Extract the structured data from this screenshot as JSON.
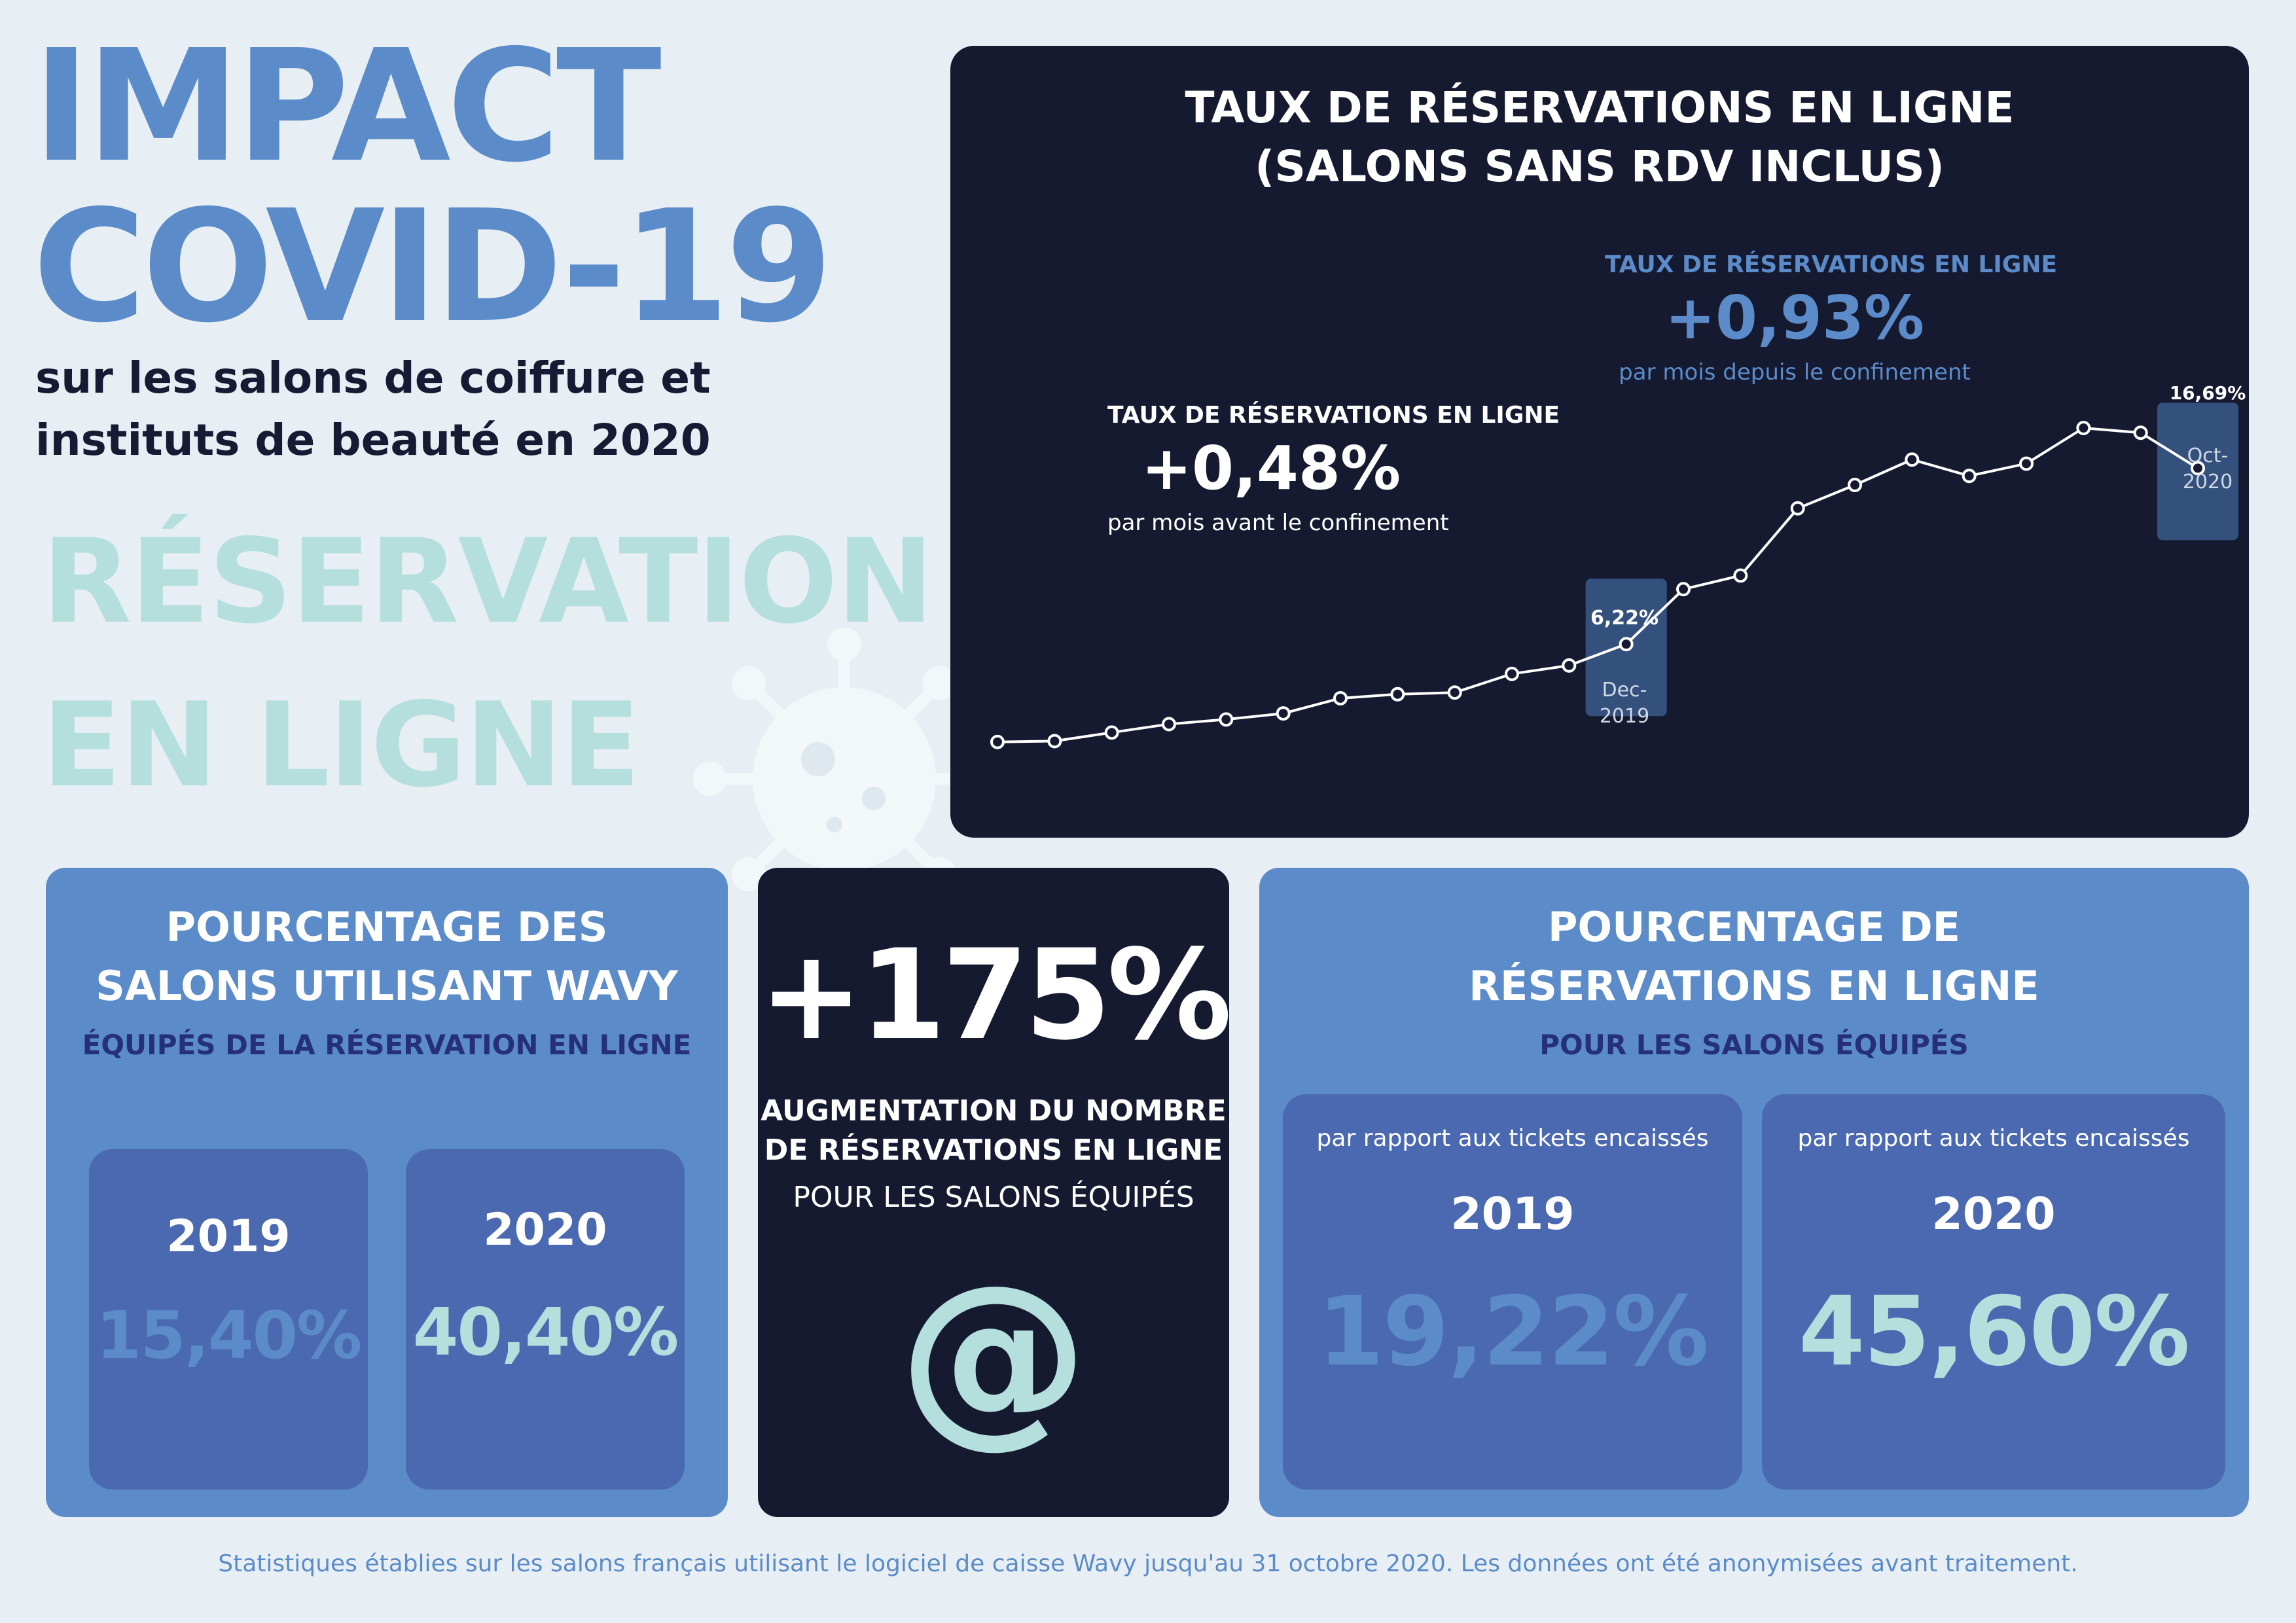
{
  "header": {
    "title_line1": "IMPACT",
    "title_line2": "COVID-19",
    "subtitle_line1": "sur les salons de coiffure et",
    "subtitle_line2": "instituts de beauté en 2020",
    "section_line1": "RÉSERVATION",
    "section_line2": "EN LIGNE"
  },
  "chart_panel": {
    "title_line1": "TAUX DE RÉSERVATIONS EN LIGNE",
    "title_line2": "(SALONS SANS RDV INCLUS)",
    "annotation_before": {
      "heading": "TAUX DE RÉSERVATIONS EN LIGNE",
      "value": "+0,48%",
      "note": "par mois avant le confinement"
    },
    "annotation_after": {
      "heading": "TAUX DE RÉSERVATIONS EN LIGNE",
      "value": "+0,93%",
      "note": "par mois depuis le confinement"
    },
    "marker_dec": {
      "value": "6,22%",
      "line1": "Dec-",
      "line2": "2019"
    },
    "marker_oct": {
      "value": "16,69%",
      "line1": "Oct-",
      "line2": "2020"
    }
  },
  "chart_data": {
    "type": "line",
    "title": "TAUX DE RÉSERVATIONS EN LIGNE (SALONS SANS RDV INCLUS)",
    "y_unit": "%",
    "x": [
      "",
      "",
      "",
      "",
      "",
      "",
      "",
      "",
      "",
      "",
      "",
      "Dec-2019",
      "",
      "",
      "",
      "",
      "",
      "",
      "",
      "",
      "",
      "Oct-2020"
    ],
    "values": [
      0.4,
      0.45,
      0.96,
      1.46,
      1.74,
      2.1,
      3.0,
      3.24,
      3.34,
      4.45,
      4.95,
      6.22,
      9.49,
      10.3,
      14.3,
      15.69,
      17.2,
      16.23,
      16.96,
      19.08,
      18.8,
      16.69
    ],
    "labeled_points": [
      {
        "x": "Dec-2019",
        "value": 6.22
      },
      {
        "x": "Oct-2020",
        "value": 16.69
      }
    ],
    "grid": false,
    "legend": "none",
    "line_color": "#ffffff",
    "marker_box_color": "#34507d"
  },
  "panel_left": {
    "title_line1": "POURCENTAGE DES",
    "title_line2": "SALONS UTILISANT WAVY",
    "subtitle": "ÉQUIPÉS DE LA RÉSERVATION EN LIGNE",
    "cards": [
      {
        "year": "2019",
        "value": "15,40%",
        "color": "#5b8bc9"
      },
      {
        "year": "2020",
        "value": "40,40%",
        "color": "#b5dfdc"
      }
    ]
  },
  "panel_mid": {
    "big_value": "+175%",
    "line1": "AUGMENTATION DU NOMBRE",
    "line2": "DE RÉSERVATIONS EN LIGNE",
    "line3": "POUR LES SALONS ÉQUIPÉS",
    "symbol": "@"
  },
  "panel_right": {
    "title_line1": "POURCENTAGE DE",
    "title_line2": "RÉSERVATIONS EN LIGNE",
    "subtitle": "POUR LES SALONS ÉQUIPÉS",
    "cards": [
      {
        "note": "par rapport aux tickets encaissés",
        "year": "2019",
        "value": "19,22%",
        "color": "#5b8bc9"
      },
      {
        "note": "par rapport aux tickets encaissés",
        "year": "2020",
        "value": "45,60%",
        "color": "#b5dfdc"
      }
    ]
  },
  "footnote": "Statistiques établies sur les salons français utilisant le logiciel de caisse Wavy jusqu'au 31 octobre 2020. Les données ont été anonymisées avant traitement.",
  "colors": {
    "background": "#e8eff4",
    "brand_blue": "#5b8bc9",
    "dark_navy": "#161a31",
    "mint": "#b5dfdc",
    "inner_blue": "#4a69b1",
    "subtitle_navy": "#252f7c"
  }
}
